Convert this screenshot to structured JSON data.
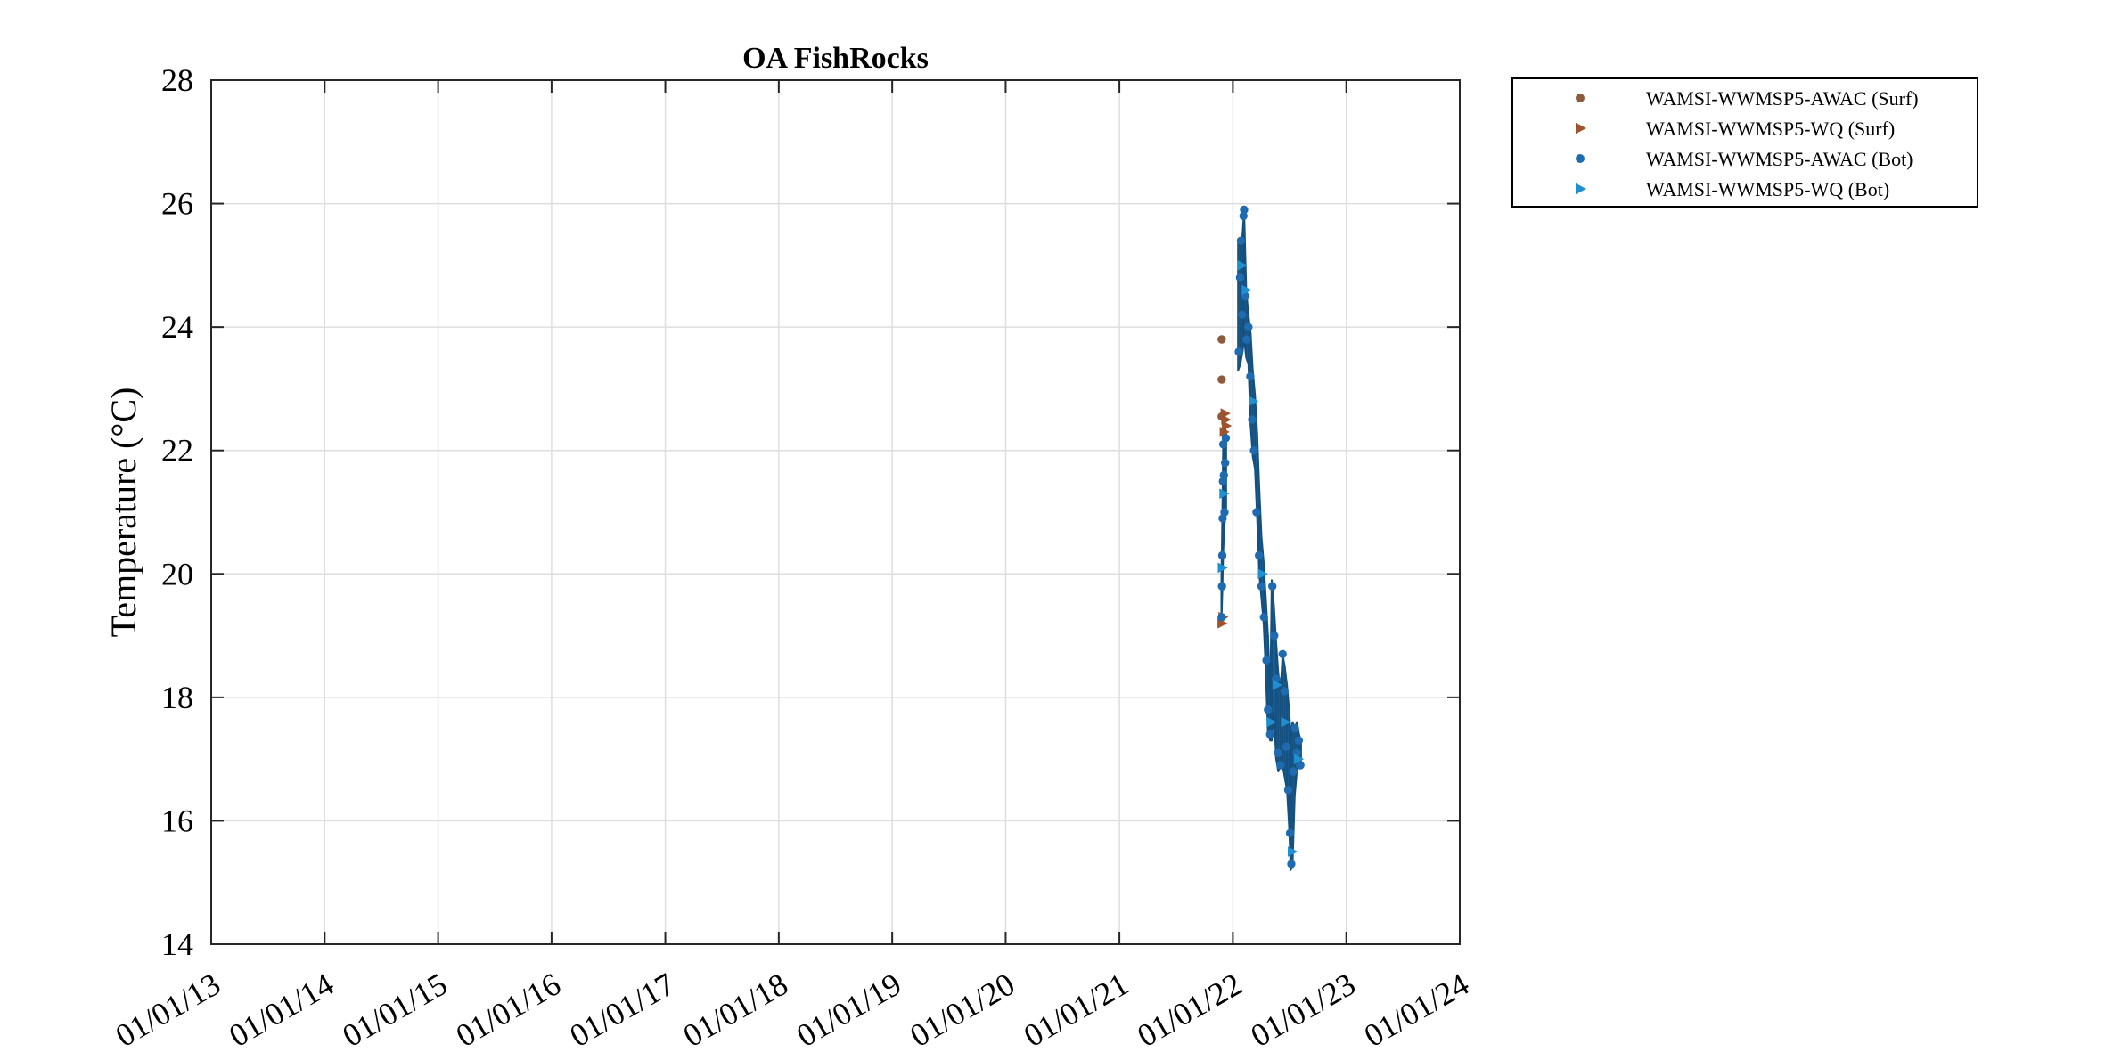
{
  "chart_data": {
    "type": "scatter",
    "title": "OA FishRocks",
    "xlabel": "",
    "ylabel": "Temperature (°C)",
    "x_axis": "date",
    "xlim": [
      "2013-01-01",
      "2024-01-01"
    ],
    "ylim": [
      14,
      28
    ],
    "x_ticks": [
      "2013-01-01",
      "2014-01-01",
      "2015-01-01",
      "2016-01-01",
      "2017-01-01",
      "2018-01-01",
      "2019-01-01",
      "2020-01-01",
      "2021-01-01",
      "2022-01-01",
      "2023-01-01",
      "2024-01-01"
    ],
    "x_tick_labels": [
      "01/01/13",
      "01/01/14",
      "01/01/15",
      "01/01/16",
      "01/01/17",
      "01/01/18",
      "01/01/19",
      "01/01/20",
      "01/01/21",
      "01/01/22",
      "01/01/23",
      "01/01/24"
    ],
    "y_ticks": [
      14,
      16,
      18,
      20,
      22,
      24,
      26,
      28
    ],
    "y_tick_labels": [
      "14",
      "16",
      "18",
      "20",
      "22",
      "24",
      "26",
      "28"
    ],
    "grid": true,
    "legend_position": "outside-right",
    "series": [
      {
        "name": "WAMSI-WWMSP5-AWAC (Surf)",
        "marker": "circle",
        "color": "#8c5a3c",
        "points": [
          [
            "2021-11-26",
            23.8
          ],
          [
            "2021-11-26",
            23.15
          ],
          [
            "2021-11-26",
            22.55
          ]
        ]
      },
      {
        "name": "WAMSI-WWMSP5-WQ (Surf)",
        "marker": "triangle-right",
        "color": "#a0522d",
        "points": [
          [
            "2021-11-26",
            19.2
          ],
          [
            "2021-11-29",
            19.3
          ],
          [
            "2021-12-06",
            22.6
          ],
          [
            "2021-12-08",
            22.5
          ],
          [
            "2021-12-10",
            22.4
          ],
          [
            "2021-12-03",
            22.3
          ]
        ]
      },
      {
        "name": "WAMSI-WWMSP5-AWAC (Bot)",
        "marker": "circle",
        "color": "#1f6bb0",
        "points": [
          [
            "2021-11-26",
            19.3
          ],
          [
            "2021-11-27",
            19.8
          ],
          [
            "2021-11-28",
            20.3
          ],
          [
            "2021-11-29",
            20.9
          ],
          [
            "2021-11-30",
            21.5
          ],
          [
            "2021-12-01",
            22.1
          ],
          [
            "2021-12-03",
            21.6
          ],
          [
            "2021-12-05",
            21.0
          ],
          [
            "2021-12-07",
            21.8
          ],
          [
            "2021-12-09",
            22.2
          ],
          [
            "2022-01-20",
            23.6
          ],
          [
            "2022-01-24",
            24.8
          ],
          [
            "2022-01-27",
            25.4
          ],
          [
            "2022-01-31",
            24.2
          ],
          [
            "2022-02-04",
            25.8
          ],
          [
            "2022-02-06",
            25.9
          ],
          [
            "2022-02-10",
            24.5
          ],
          [
            "2022-02-14",
            23.8
          ],
          [
            "2022-02-20",
            24.0
          ],
          [
            "2022-02-26",
            23.2
          ],
          [
            "2022-03-04",
            22.5
          ],
          [
            "2022-03-10",
            22.0
          ],
          [
            "2022-03-18",
            21.0
          ],
          [
            "2022-03-26",
            20.3
          ],
          [
            "2022-04-03",
            19.8
          ],
          [
            "2022-04-11",
            19.3
          ],
          [
            "2022-04-19",
            18.6
          ],
          [
            "2022-04-24",
            17.8
          ],
          [
            "2022-05-01",
            17.4
          ],
          [
            "2022-05-08",
            19.8
          ],
          [
            "2022-05-14",
            19.0
          ],
          [
            "2022-05-20",
            18.3
          ],
          [
            "2022-05-26",
            17.1
          ],
          [
            "2022-06-03",
            16.9
          ],
          [
            "2022-06-10",
            18.7
          ],
          [
            "2022-06-16",
            18.1
          ],
          [
            "2022-06-22",
            17.2
          ],
          [
            "2022-06-28",
            16.5
          ],
          [
            "2022-07-04",
            15.8
          ],
          [
            "2022-07-08",
            15.3
          ],
          [
            "2022-07-14",
            16.8
          ],
          [
            "2022-07-20",
            17.5
          ],
          [
            "2022-07-26",
            17.1
          ],
          [
            "2022-08-01",
            17.3
          ],
          [
            "2022-08-06",
            16.9
          ]
        ]
      },
      {
        "name": "WAMSI-WWMSP5-WQ (Bot)",
        "marker": "triangle-right",
        "color": "#1f8fd0",
        "points": [
          [
            "2021-11-27",
            20.1
          ],
          [
            "2021-12-02",
            21.3
          ],
          [
            "2022-01-29",
            25.0
          ],
          [
            "2022-02-12",
            24.6
          ],
          [
            "2022-03-06",
            22.8
          ],
          [
            "2022-04-05",
            20.0
          ],
          [
            "2022-05-03",
            17.6
          ],
          [
            "2022-05-22",
            18.2
          ],
          [
            "2022-06-18",
            17.6
          ],
          [
            "2022-07-10",
            15.5
          ],
          [
            "2022-07-30",
            17.0
          ]
        ]
      }
    ],
    "bands": [
      {
        "name": "WAMSI-WWMSP5-AWAC (Bot)",
        "color": "#1f6bb0",
        "segments": [
          {
            "start": "2021-11-25",
            "end": "2021-12-10",
            "spike": [
              "2021-11-26",
              19.2,
              22.3
            ]
          },
          {
            "start": "2022-01-18",
            "end": "2022-08-08",
            "spike": [
              "2022-02-06",
              23.3,
              25.9
            ]
          }
        ],
        "envelope": [
          [
            "2021-11-25",
            19.2,
            19.9
          ],
          [
            "2021-11-28",
            19.7,
            20.9
          ],
          [
            "2021-12-01",
            20.4,
            22.3
          ],
          [
            "2021-12-05",
            20.8,
            22.4
          ],
          [
            "2021-12-10",
            21.0,
            22.3
          ],
          [
            "2022-01-18",
            23.3,
            25.4
          ],
          [
            "2022-01-25",
            23.4,
            25.3
          ],
          [
            "2022-02-01",
            23.6,
            25.5
          ],
          [
            "2022-02-06",
            23.8,
            25.9
          ],
          [
            "2022-02-13",
            23.5,
            24.6
          ],
          [
            "2022-02-20",
            23.4,
            24.2
          ],
          [
            "2022-02-27",
            22.4,
            23.9
          ],
          [
            "2022-03-06",
            21.9,
            23.3
          ],
          [
            "2022-03-13",
            21.7,
            22.9
          ],
          [
            "2022-03-20",
            20.9,
            22.3
          ],
          [
            "2022-03-27",
            20.0,
            21.4
          ],
          [
            "2022-04-03",
            19.6,
            20.6
          ],
          [
            "2022-04-10",
            19.2,
            20.2
          ],
          [
            "2022-04-17",
            18.4,
            19.6
          ],
          [
            "2022-04-24",
            17.4,
            19.0
          ],
          [
            "2022-05-01",
            17.3,
            18.0
          ],
          [
            "2022-05-06",
            17.3,
            19.9
          ],
          [
            "2022-05-13",
            17.8,
            19.5
          ],
          [
            "2022-05-20",
            17.0,
            18.9
          ],
          [
            "2022-05-27",
            16.8,
            18.4
          ],
          [
            "2022-06-03",
            16.9,
            18.1
          ],
          [
            "2022-06-10",
            16.9,
            18.7
          ],
          [
            "2022-06-17",
            16.7,
            18.5
          ],
          [
            "2022-06-24",
            16.5,
            18.2
          ],
          [
            "2022-07-01",
            15.9,
            17.8
          ],
          [
            "2022-07-06",
            15.2,
            17.4
          ],
          [
            "2022-07-12",
            15.3,
            17.6
          ],
          [
            "2022-07-19",
            16.4,
            17.5
          ],
          [
            "2022-07-26",
            16.8,
            17.6
          ],
          [
            "2022-08-02",
            16.9,
            17.4
          ],
          [
            "2022-08-08",
            16.9,
            17.3
          ]
        ]
      }
    ]
  },
  "colors": {
    "axis": "#262626",
    "grid": "#dedede",
    "surf_circle": "#8c5a3c",
    "surf_triangle": "#a0522d",
    "bot_circle": "#1f6bb0",
    "bot_triangle": "#1f8fd0"
  }
}
